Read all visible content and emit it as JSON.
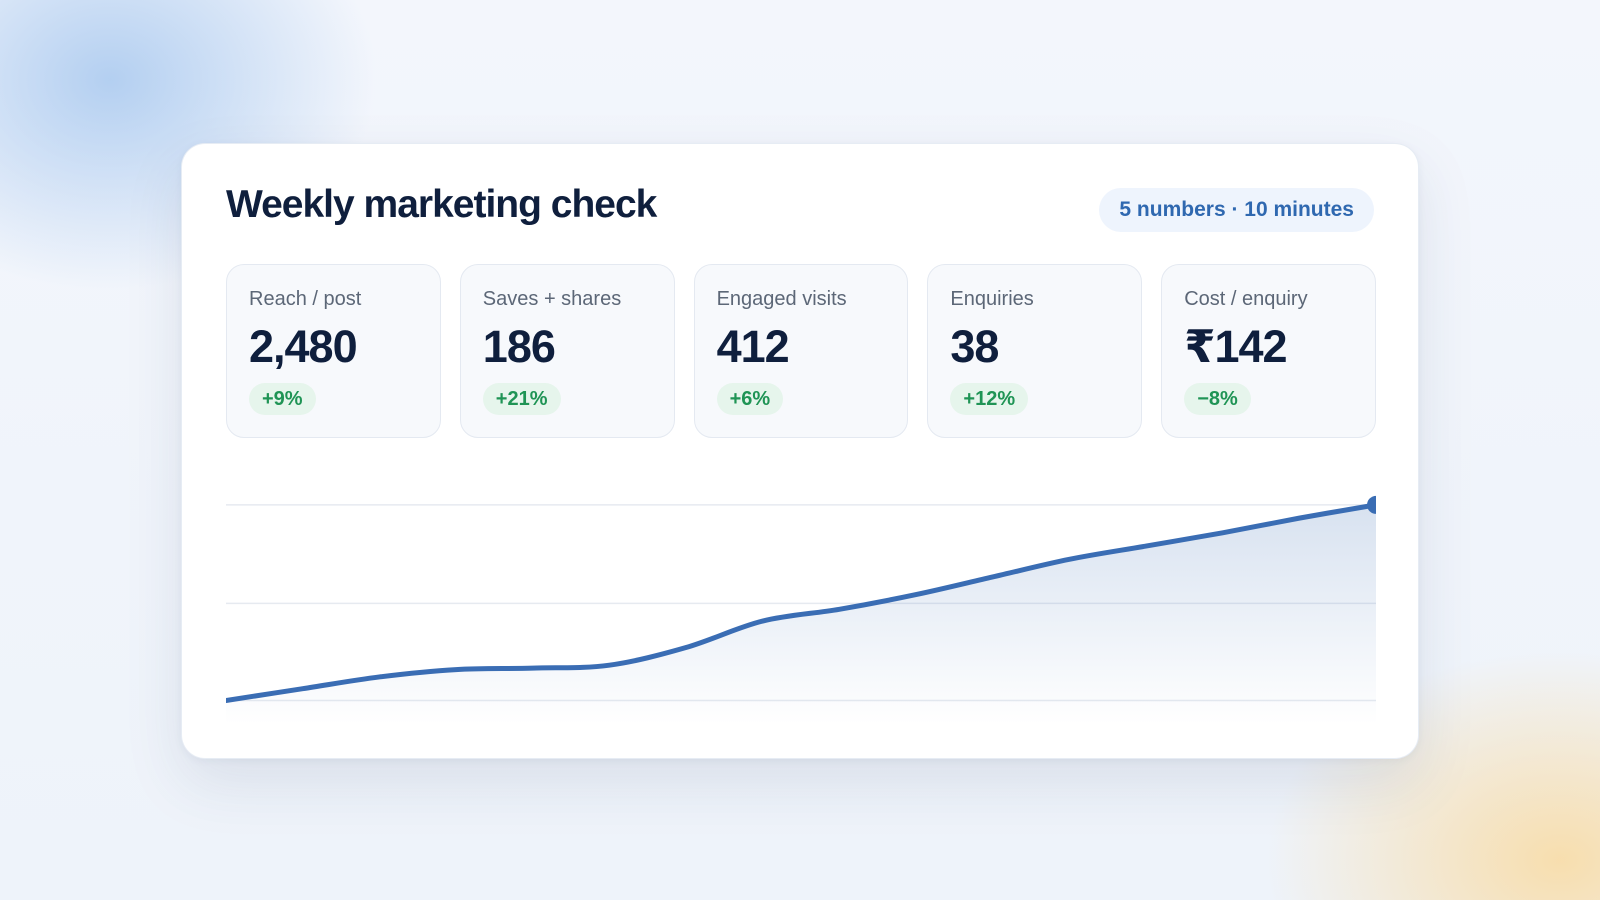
{
  "header": {
    "title": "Weekly marketing check",
    "badge": "5 numbers · 10 minutes"
  },
  "metrics": [
    {
      "label": "Reach / post",
      "value": "2,480",
      "change": "+9%"
    },
    {
      "label": "Saves + shares",
      "value": "186",
      "change": "+21%"
    },
    {
      "label": "Engaged visits",
      "value": "412",
      "change": "+6%"
    },
    {
      "label": "Enquiries",
      "value": "38",
      "change": "+12%"
    },
    {
      "label": "Cost / enquiry",
      "value": "₹142",
      "change": "−8%"
    }
  ],
  "colors": {
    "title": "#0f1f3d",
    "accent": "#2f68b0",
    "line": "#3a6db4",
    "positive_text": "#1f9455",
    "positive_bg": "#e6f5ec"
  },
  "chart_data": {
    "type": "area",
    "x": [
      0,
      1,
      2,
      3,
      4,
      5,
      6,
      7,
      8,
      9,
      10,
      11,
      12,
      13,
      14,
      15
    ],
    "values": [
      0,
      4,
      8,
      10.5,
      11,
      12,
      18,
      27,
      31,
      36,
      42,
      48,
      52.5,
      57,
      62,
      66.5
    ],
    "ylim": [
      -8,
      77
    ],
    "gridlines": [
      0,
      33,
      66.5
    ],
    "grid": true,
    "marker_last": true,
    "title": "",
    "xlabel": "",
    "ylabel": ""
  }
}
